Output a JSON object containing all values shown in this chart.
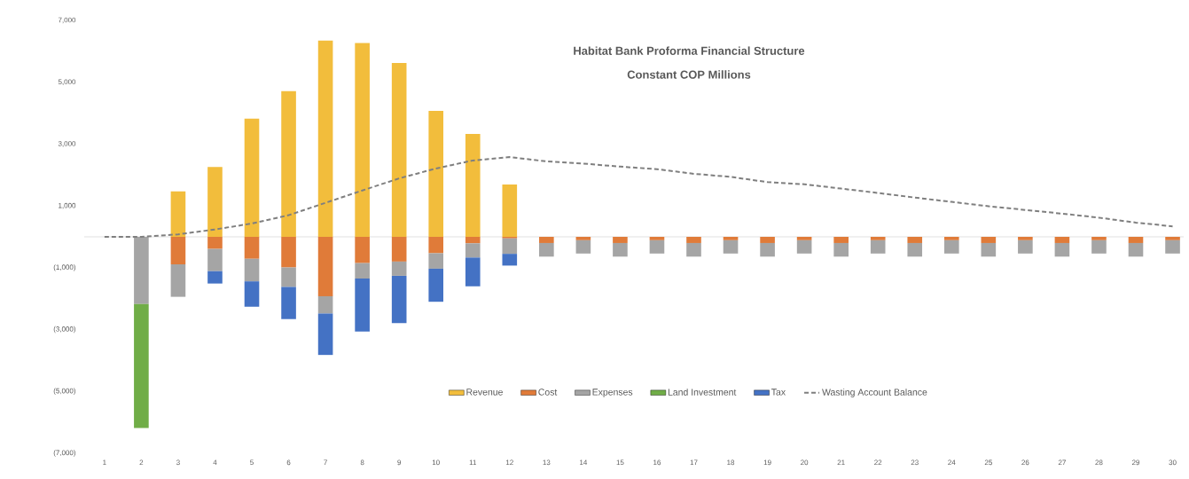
{
  "chart_data": {
    "type": "bar",
    "stacked": true,
    "title": "Habitat Bank Proforma Financial Structure",
    "subtitle": "Constant COP Millions",
    "categories": [
      "1",
      "2",
      "3",
      "4",
      "5",
      "6",
      "7",
      "8",
      "9",
      "10",
      "11",
      "12",
      "13",
      "14",
      "15",
      "16",
      "17",
      "18",
      "19",
      "20",
      "21",
      "22",
      "23",
      "24",
      "25",
      "26",
      "27",
      "28",
      "29",
      "30"
    ],
    "series": [
      {
        "name": "Revenue",
        "color": "#f2bd3c",
        "values": [
          null,
          null,
          1470,
          2260,
          3820,
          4710,
          6350,
          6270,
          5620,
          4070,
          3330,
          1690,
          null,
          null,
          null,
          null,
          null,
          null,
          null,
          null,
          null,
          null,
          null,
          null,
          null,
          null,
          null,
          null,
          null,
          null
        ]
      },
      {
        "name": "Cost",
        "color": "#e07b39",
        "values": [
          null,
          null,
          -890,
          -390,
          -710,
          -990,
          -1920,
          -850,
          -800,
          -530,
          -210,
          -50,
          -200,
          -110,
          -200,
          -110,
          -200,
          -110,
          -200,
          -110,
          -200,
          -110,
          -200,
          -110,
          -200,
          -110,
          -200,
          -110,
          -200,
          -110
        ]
      },
      {
        "name": "Expenses",
        "color": "#a5a5a5",
        "values": [
          null,
          -2170,
          -1050,
          -720,
          -730,
          -630,
          -560,
          -500,
          -460,
          -500,
          -460,
          -500,
          -440,
          -430,
          -440,
          -430,
          -440,
          -430,
          -440,
          -430,
          -440,
          -430,
          -440,
          -430,
          -440,
          -430,
          -440,
          -430,
          -440,
          -430
        ]
      },
      {
        "name": "Land Investment",
        "color": "#70ad47",
        "values": [
          null,
          -4010,
          null,
          null,
          null,
          null,
          null,
          null,
          null,
          null,
          null,
          null,
          null,
          null,
          null,
          null,
          null,
          null,
          null,
          null,
          null,
          null,
          null,
          null,
          null,
          null,
          null,
          null,
          null,
          null
        ]
      },
      {
        "name": "Tax",
        "color": "#4472c4",
        "values": [
          null,
          null,
          null,
          -400,
          -820,
          -1040,
          -1340,
          -1710,
          -1530,
          -1070,
          -930,
          -380,
          null,
          null,
          null,
          null,
          null,
          null,
          null,
          null,
          null,
          null,
          null,
          null,
          null,
          null,
          null,
          null,
          null,
          null
        ]
      },
      {
        "name": "Wasting Account Balance",
        "type": "line",
        "color": "#7f7f7f",
        "values": [
          0,
          0,
          80,
          240,
          430,
          700,
          1100,
          1500,
          1890,
          2210,
          2470,
          2580,
          2440,
          2370,
          2270,
          2190,
          2040,
          1940,
          1770,
          1700,
          1560,
          1420,
          1270,
          1130,
          990,
          870,
          750,
          620,
          460,
          340
        ]
      }
    ],
    "line_style": "dashed",
    "legend": "bottom",
    "ylim": [
      -7000,
      7000
    ],
    "yticks": [
      {
        "value": -7000,
        "label": "(7,000)"
      },
      {
        "value": -5000,
        "label": "(5,000)"
      },
      {
        "value": -3000,
        "label": "(3,000)"
      },
      {
        "value": -1000,
        "label": "(1,000)"
      },
      {
        "value": 1000,
        "label": "1,000"
      },
      {
        "value": 3000,
        "label": "3,000"
      },
      {
        "value": 5000,
        "label": "5,000"
      },
      {
        "value": 7000,
        "label": "7,000"
      }
    ]
  }
}
